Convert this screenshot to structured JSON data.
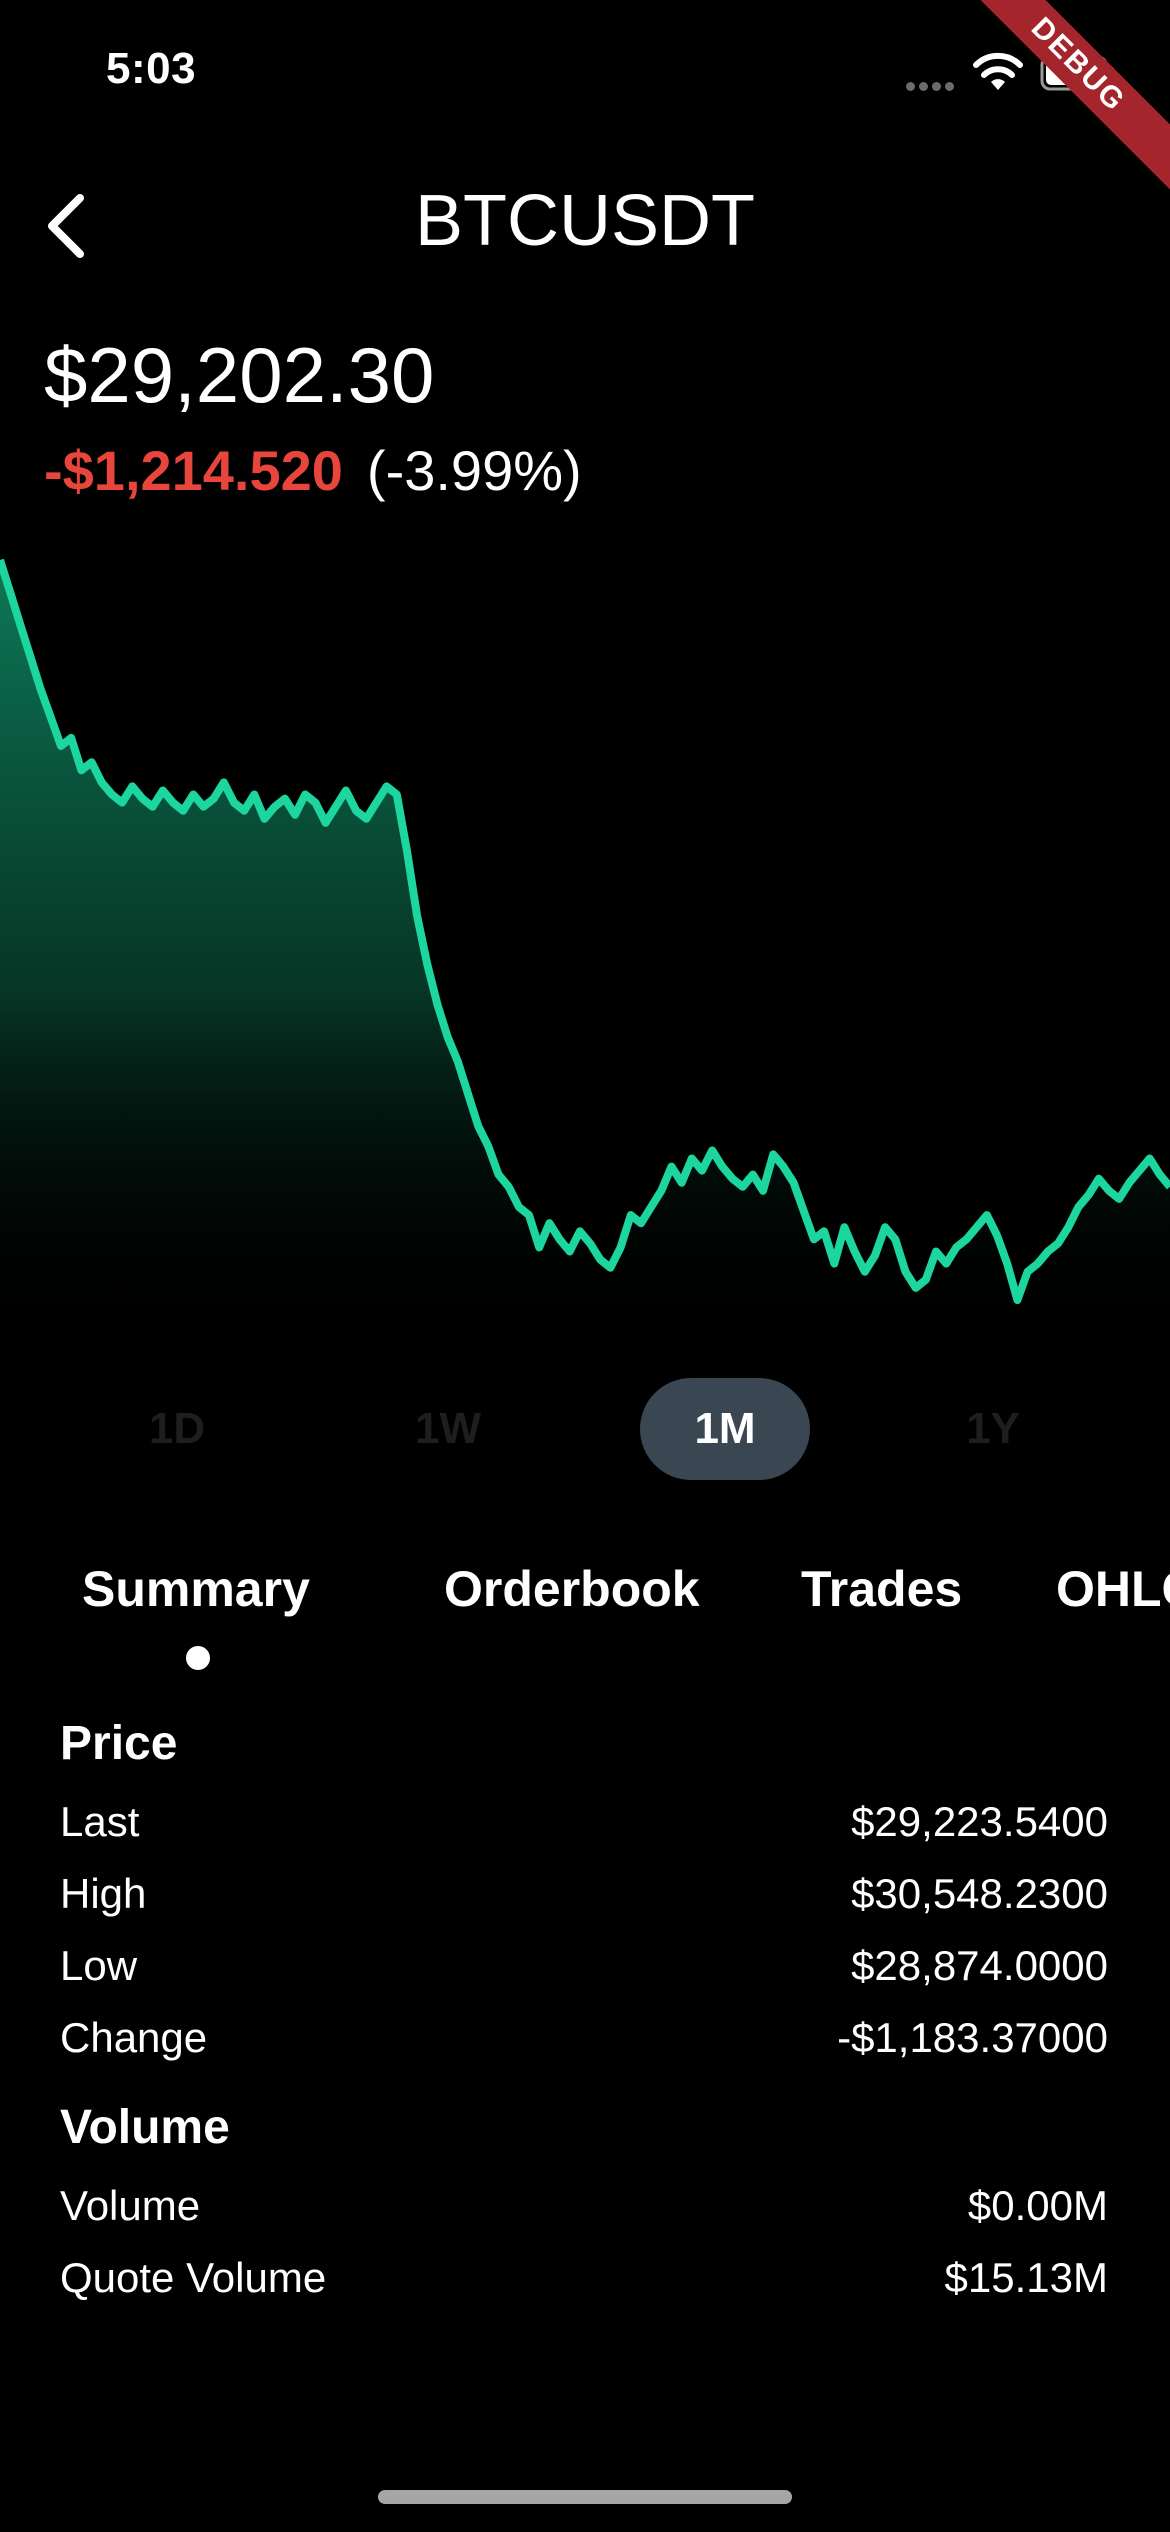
{
  "status_bar": {
    "time": "5:03"
  },
  "debug_banner": "DEBUG",
  "header": {
    "title": "BTCUSDT"
  },
  "price": {
    "current": "$29,202.30",
    "change": "-$1,214.520",
    "change_percent": "(-3.99%)"
  },
  "colors": {
    "background": "#000000",
    "line": "#1dd69f",
    "negative": "#e8453c",
    "active_range": "#3a4651"
  },
  "chart_data": {
    "type": "area",
    "title": "",
    "xlabel": "",
    "ylabel": "",
    "grid": false,
    "values": [
      30700,
      30620,
      30540,
      30460,
      30380,
      30310,
      30240,
      30260,
      30180,
      30200,
      30150,
      30120,
      30100,
      30140,
      30110,
      30090,
      30130,
      30100,
      30080,
      30120,
      30090,
      30110,
      30150,
      30100,
      30080,
      30120,
      30060,
      30090,
      30110,
      30070,
      30120,
      30100,
      30050,
      30090,
      30130,
      30080,
      30060,
      30100,
      30140,
      30120,
      29980,
      29820,
      29700,
      29600,
      29520,
      29460,
      29380,
      29300,
      29250,
      29180,
      29150,
      29100,
      29080,
      29000,
      29060,
      29020,
      28990,
      29040,
      29010,
      28970,
      28950,
      29000,
      29080,
      29060,
      29100,
      29140,
      29200,
      29160,
      29220,
      29190,
      29240,
      29200,
      29170,
      29150,
      29180,
      29140,
      29230,
      29200,
      29160,
      29090,
      29020,
      29040,
      28960,
      29050,
      28990,
      28940,
      28980,
      29050,
      29020,
      28940,
      28900,
      28920,
      28990,
      28960,
      29000,
      29020,
      29050,
      29080,
      29030,
      28960,
      28870,
      28940,
      28960,
      28990,
      29010,
      29050,
      29100,
      29130,
      29170,
      29140,
      29120,
      29160,
      29190,
      29220,
      29180,
      29150
    ],
    "line_color": "#1dd69f"
  },
  "ranges": [
    {
      "label": "1D",
      "active": false
    },
    {
      "label": "1W",
      "active": false
    },
    {
      "label": "1M",
      "active": true
    },
    {
      "label": "1Y",
      "active": false
    }
  ],
  "tabs": [
    {
      "label": "Summary",
      "active": true
    },
    {
      "label": "Orderbook",
      "active": false
    },
    {
      "label": "Trades",
      "active": false
    },
    {
      "label": "OHLC",
      "active": false
    }
  ],
  "summary": {
    "price_title": "Price",
    "price_rows": [
      {
        "label": "Last",
        "value": "$29,223.5400"
      },
      {
        "label": "High",
        "value": "$30,548.2300"
      },
      {
        "label": "Low",
        "value": "$28,874.0000"
      },
      {
        "label": "Change",
        "value": "-$1,183.37000"
      }
    ],
    "volume_title": "Volume",
    "volume_rows": [
      {
        "label": "Volume",
        "value": "$0.00M"
      },
      {
        "label": "Quote Volume",
        "value": "$15.13M"
      }
    ]
  }
}
